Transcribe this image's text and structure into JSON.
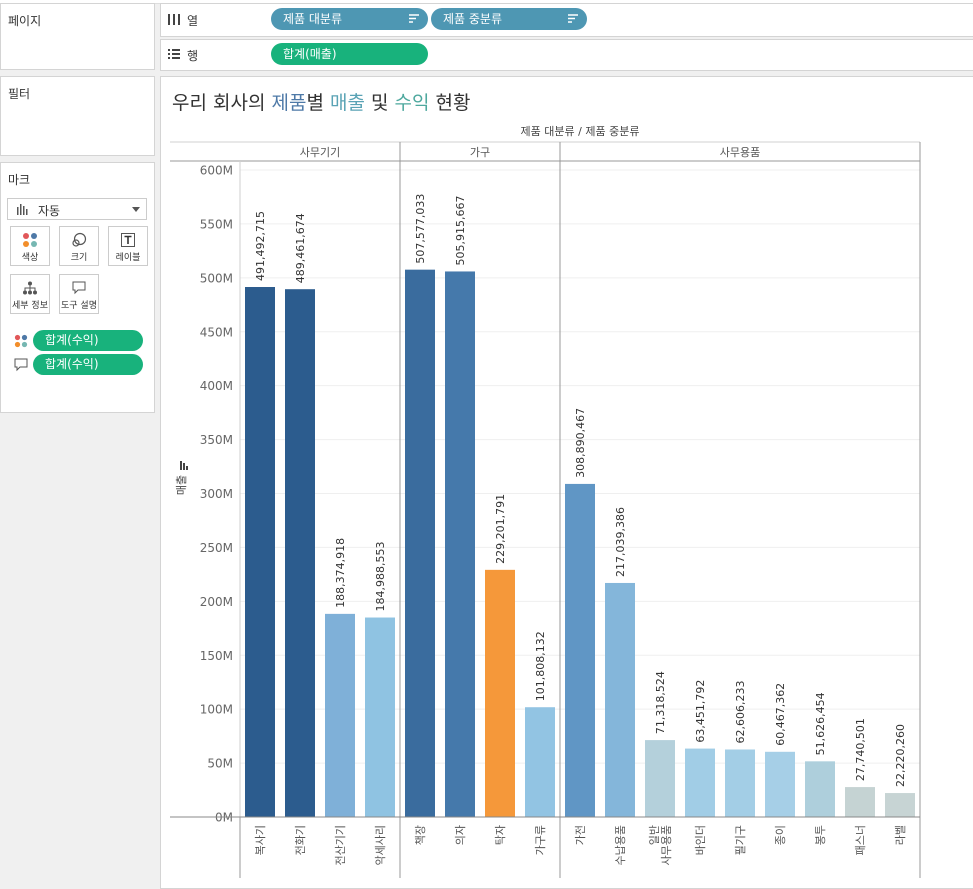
{
  "shelves": {
    "pages_label": "페이지",
    "columns_label": "열",
    "rows_label": "행",
    "filters_label": "필터",
    "column_pills": [
      "제품 대분류",
      "제품 중분류"
    ],
    "row_pill": "합계(매출)"
  },
  "marks": {
    "title": "마크",
    "type": "자동",
    "buttons": [
      "색상",
      "크기",
      "레이블",
      "세부 정보",
      "도구 설명"
    ],
    "color_pill": "합계(수익)",
    "tooltip_pill": "합계(수익)"
  },
  "title": {
    "part1": "우리 회사의 ",
    "part2": "제품",
    "part3": "별 ",
    "part4": "매출",
    "part5": " 및 ",
    "part6": "수익",
    "part7": " 현황",
    "color_product": "#4e79a7",
    "color_sales": "#5aa3b5",
    "color_profit": "#4ea89e"
  },
  "chart_data": {
    "type": "bar",
    "header_title": "제품 대분류 / 제품 중분류",
    "ylabel": "매출",
    "ylim": [
      0,
      600000000
    ],
    "yticks": [
      0,
      50000000,
      100000000,
      150000000,
      200000000,
      250000000,
      300000000,
      350000000,
      400000000,
      450000000,
      500000000,
      550000000,
      600000000
    ],
    "ytick_labels": [
      "0M",
      "50M",
      "100M",
      "150M",
      "200M",
      "250M",
      "300M",
      "350M",
      "400M",
      "450M",
      "500M",
      "550M",
      "600M"
    ],
    "groups": [
      {
        "name": "사무기기",
        "bars": [
          {
            "label": "복사기",
            "value": 491492715,
            "value_label": "491,492,715",
            "color": "#2c5c8e"
          },
          {
            "label": "전화기",
            "value": 489461674,
            "value_label": "489,461,674",
            "color": "#2c5c8e"
          },
          {
            "label": "전산기기",
            "value": 188374918,
            "value_label": "188,374,918",
            "color": "#7fb0d8"
          },
          {
            "label": "악세사리",
            "value": 184988553,
            "value_label": "184,988,553",
            "color": "#8fc3e2"
          }
        ]
      },
      {
        "name": "가구",
        "bars": [
          {
            "label": "책장",
            "value": 507577033,
            "value_label": "507,577,033",
            "color": "#3a6c9e"
          },
          {
            "label": "의자",
            "value": 505915667,
            "value_label": "505,915,667",
            "color": "#4579ab"
          },
          {
            "label": "탁자",
            "value": 229201791,
            "value_label": "229,201,791",
            "color": "#f5983a"
          },
          {
            "label": "가구류",
            "value": 101808132,
            "value_label": "101,808,132",
            "color": "#92c4e3"
          }
        ]
      },
      {
        "name": "사무용품",
        "bars": [
          {
            "label": "가전",
            "value": 308890467,
            "value_label": "308,890,467",
            "color": "#6096c5"
          },
          {
            "label": "수납용품",
            "value": 217039386,
            "value_label": "217,039,386",
            "color": "#84b6da"
          },
          {
            "label": "일반 사무용품",
            "value": 71318524,
            "value_label": "71,318,524",
            "color": "#b4d0db"
          },
          {
            "label": "바인더",
            "value": 63451792,
            "value_label": "63,451,792",
            "color": "#a1cde6"
          },
          {
            "label": "필기구",
            "value": 62606233,
            "value_label": "62,606,233",
            "color": "#a3cee6"
          },
          {
            "label": "종이",
            "value": 60467362,
            "value_label": "60,467,362",
            "color": "#a6cfe7"
          },
          {
            "label": "봉투",
            "value": 51626454,
            "value_label": "51,626,454",
            "color": "#aecfdc"
          },
          {
            "label": "패스너",
            "value": 27740501,
            "value_label": "27,740,501",
            "color": "#c5d3d3"
          },
          {
            "label": "라벨",
            "value": 22220260,
            "value_label": "22,220,260",
            "color": "#c7d4d4"
          }
        ]
      }
    ]
  }
}
